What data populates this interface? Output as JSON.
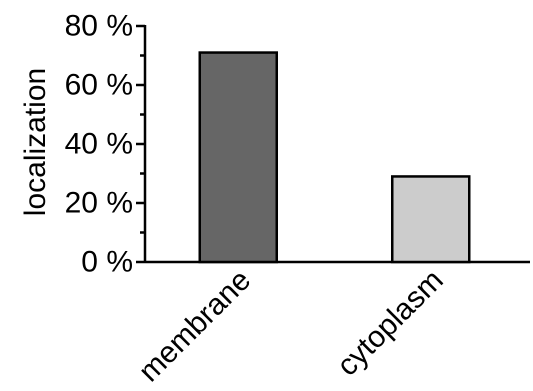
{
  "chart_data": {
    "type": "bar",
    "categories": [
      "membrane",
      "cytoplasm"
    ],
    "values": [
      71,
      29
    ],
    "ylabel": "localization",
    "xlabel": "",
    "ylim": [
      0,
      80
    ],
    "y_ticks": [
      "0 %",
      "20 %",
      "40 %",
      "60 %",
      "80 %"
    ],
    "grid": false,
    "bar_colors": [
      "#666666",
      "#cccccc"
    ],
    "bar_edge_color": "#000000"
  }
}
